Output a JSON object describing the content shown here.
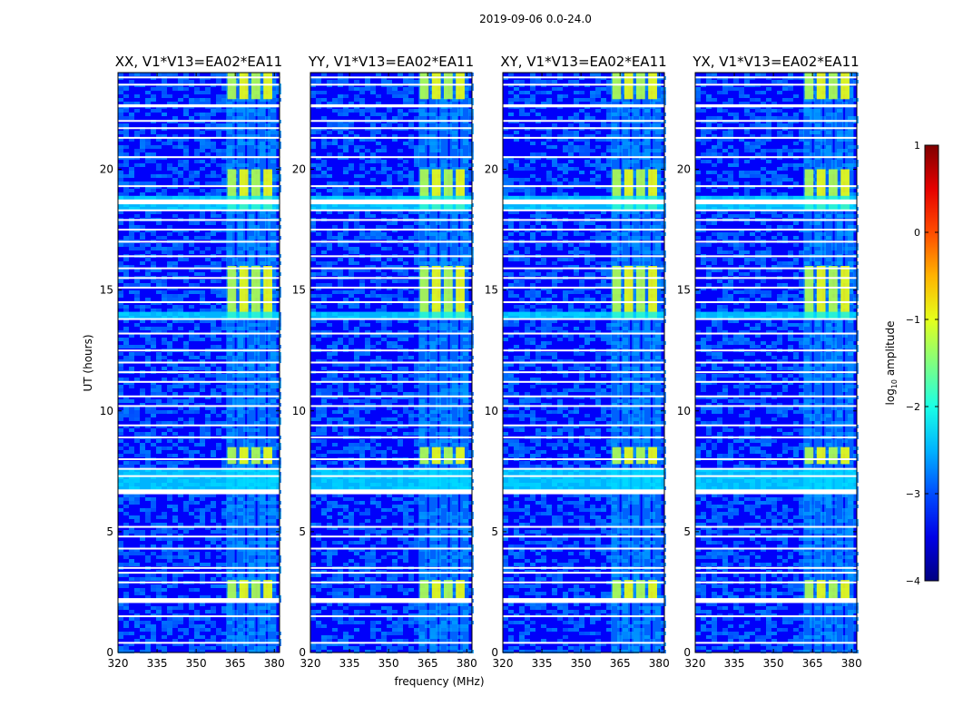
{
  "figure": {
    "suptitle": "2019-09-06 0.0-24.0",
    "colorbar_label": "log",
    "colorbar_label_sub": "10",
    "colorbar_label_rest": " amplitude"
  },
  "chart_data": {
    "type": "heatmap",
    "title": "2019-09-06 0.0-24.0",
    "xlabel": "frequency (MHz)",
    "ylabel": "UT (hours)",
    "xlim": [
      320,
      382
    ],
    "ylim": [
      0,
      24
    ],
    "xticks": [
      320,
      335,
      350,
      365,
      380
    ],
    "yticks": [
      0,
      5,
      10,
      15,
      20
    ],
    "colorbar": {
      "label": "log10 amplitude",
      "range": [
        -4,
        1
      ],
      "ticks": [
        -4,
        -3,
        -2,
        -1,
        0,
        1
      ],
      "colormap": "jet"
    },
    "panels": [
      {
        "title": "XX, V1*V13=EA02*EA11",
        "pol": "XX"
      },
      {
        "title": "YY, V1*V13=EA02*EA11",
        "pol": "YY"
      },
      {
        "title": "XY, V1*V13=EA02*EA11",
        "pol": "XY"
      },
      {
        "title": "YX, V1*V13=EA02*EA11",
        "pol": "YX"
      }
    ],
    "flagged_gaps_hours": [
      0.4,
      1.5,
      2.1,
      2.15,
      2.9,
      3.3,
      3.5,
      4.3,
      4.8,
      5.2,
      6.6,
      6.65,
      7.3,
      7.6,
      8.0,
      8.9,
      9.4,
      10.2,
      10.6,
      11.2,
      11.6,
      12.0,
      12.5,
      13.2,
      13.8,
      14.5,
      15.1,
      15.5,
      15.9,
      16.4,
      17.0,
      17.5,
      17.9,
      18.3,
      18.6,
      18.7,
      19.3,
      20.5,
      21.3,
      21.7,
      22.0,
      22.6,
      22.65,
      23.5,
      23.8
    ],
    "rfi_band_mhz": [
      361,
      381
    ],
    "strong_emission_hours": [
      [
        2.2,
        3.0
      ],
      [
        7.8,
        8.5
      ],
      [
        13.8,
        16.0
      ],
      [
        18.3,
        20.0
      ],
      [
        22.9,
        24.0
      ]
    ]
  }
}
